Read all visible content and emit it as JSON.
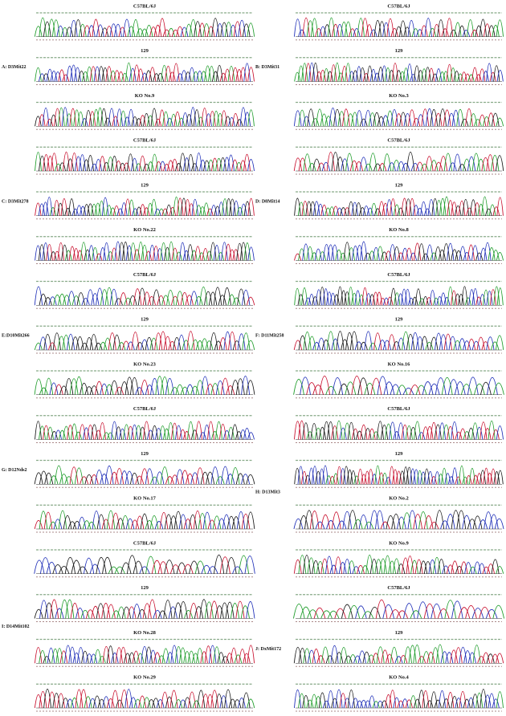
{
  "columns": [
    [
      {
        "label": "A: D3Mit22",
        "traces": [
          "C57BL/6J",
          "129",
          "KO No.9"
        ]
      },
      {
        "label": "C: D3Mit278",
        "traces": [
          "C57BL/6J",
          "129",
          "KO No.22"
        ]
      },
      {
        "label": "E:D10Mit266",
        "traces": [
          "C57BL/6J",
          "129",
          "KO No.23"
        ]
      },
      {
        "label": "G: D12Nds2",
        "traces": [
          "C57BL/6J",
          "129",
          "KO No.17"
        ]
      },
      {
        "label": "I: D14Mit102",
        "traces": [
          "C57BL/6J",
          "129",
          "KO No.28",
          "KO No.29"
        ]
      }
    ],
    [
      {
        "label": "B: D3Mit31",
        "traces": [
          "C57BL/6J",
          "129",
          "KO No.3"
        ]
      },
      {
        "label": "D: D8Mit14",
        "traces": [
          "C57BL/6J",
          "129",
          "KO No.8"
        ]
      },
      {
        "label": "F: D11Mit258",
        "traces": [
          "C57BL/6J",
          "129",
          "KO No.16"
        ]
      },
      {
        "label": "H: D13Mit3",
        "traces": [
          "C57BL/6J",
          "129",
          "KO No.2",
          "KO No.9"
        ]
      },
      {
        "label": "J: DxMit172",
        "traces": [
          "C57BL/6J",
          "129",
          "KO No.4"
        ]
      }
    ]
  ]
}
